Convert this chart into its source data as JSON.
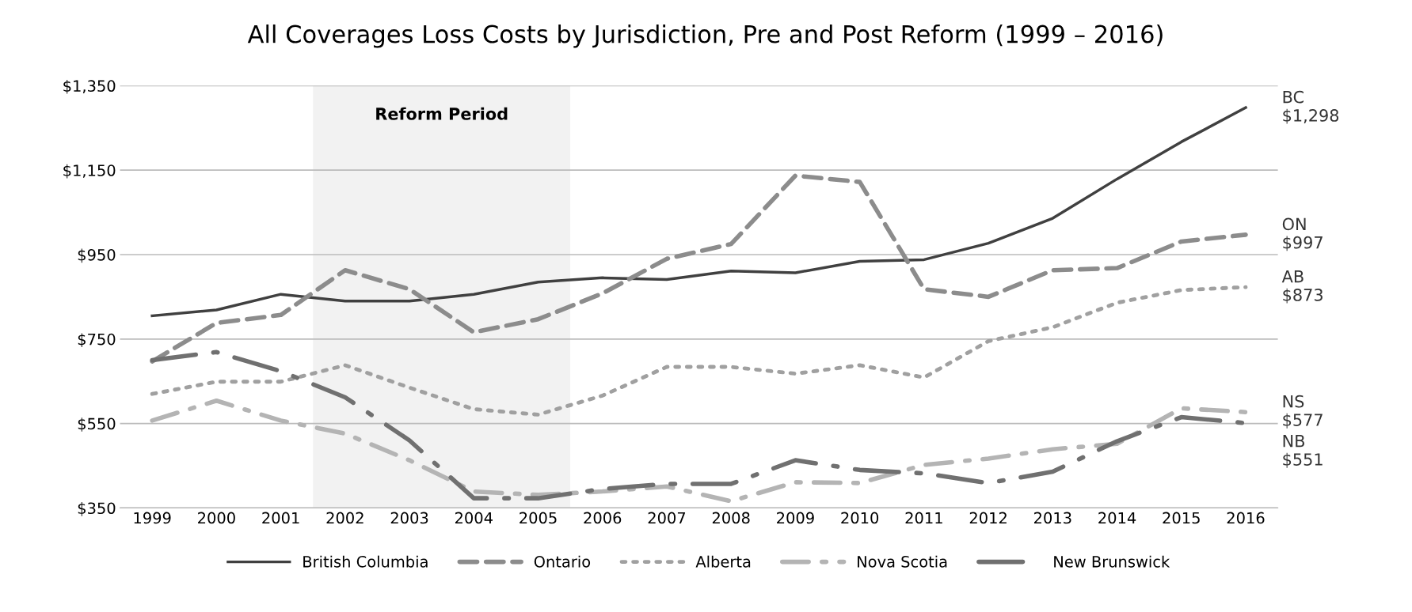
{
  "chart_data": {
    "type": "line",
    "title": "All Coverages Loss Costs by Jurisdiction, Pre and Post Reform (1999 – 2016)",
    "x": [
      1999,
      2000,
      2001,
      2002,
      2003,
      2004,
      2005,
      2006,
      2007,
      2008,
      2009,
      2010,
      2011,
      2012,
      2013,
      2014,
      2015,
      2016
    ],
    "xlim": [
      1998.5,
      2016.5
    ],
    "xticks": [
      1999,
      2000,
      2001,
      2002,
      2003,
      2004,
      2005,
      2006,
      2007,
      2008,
      2009,
      2010,
      2011,
      2012,
      2013,
      2014,
      2015,
      2016
    ],
    "ylim": [
      350,
      1350
    ],
    "yticks": [
      {
        "value": 350,
        "label": "$350"
      },
      {
        "value": 550,
        "label": "$550"
      },
      {
        "value": 750,
        "label": "$750"
      },
      {
        "value": 950,
        "label": "$950"
      },
      {
        "value": 1150,
        "label": "$1,150"
      },
      {
        "value": 1350,
        "label": "$1,350"
      }
    ],
    "grid": "y",
    "legend": "bottom",
    "series": [
      {
        "name": "British Columbia",
        "color": "#404040",
        "line_style": "solid",
        "values": [
          805,
          819,
          856,
          840,
          840,
          856,
          885,
          895,
          891,
          911,
          907,
          934,
          938,
          977,
          1036,
          1129,
          1217,
          1298
        ]
      },
      {
        "name": "Ontario",
        "color": "#8c8c8c",
        "line_style": "dashed",
        "values": [
          697,
          788,
          807,
          913,
          868,
          766,
          797,
          858,
          940,
          975,
          1137,
          1122,
          868,
          850,
          913,
          918,
          981,
          997
        ]
      },
      {
        "name": "Alberta",
        "color": "#a0a0a0",
        "line_style": "dotted",
        "values": [
          620,
          649,
          649,
          688,
          635,
          584,
          571,
          616,
          684,
          684,
          668,
          688,
          659,
          745,
          778,
          836,
          866,
          873
        ]
      },
      {
        "name": "Nova Scotia",
        "color": "#b4b4b4",
        "line_style": "dashdot",
        "values": [
          557,
          604,
          557,
          526,
          463,
          389,
          381,
          389,
          401,
          366,
          411,
          409,
          452,
          467,
          489,
          502,
          586,
          577
        ]
      },
      {
        "name": "New Brunswick",
        "color": "#707070",
        "line_style": "longdashdot",
        "values": [
          700,
          719,
          674,
          612,
          510,
          373,
          373,
          395,
          407,
          407,
          463,
          440,
          432,
          409,
          436,
          508,
          565,
          551
        ]
      }
    ],
    "bands": [
      {
        "axis": "x",
        "from": 2001.5,
        "to": 2005.5,
        "label": "Reform Period",
        "color": "#f2f2f2"
      }
    ],
    "annotations": [
      "BC\n$1,298",
      "ON\n$997",
      "AB\n$873",
      "NS\n$577",
      "NB\n$551"
    ]
  }
}
